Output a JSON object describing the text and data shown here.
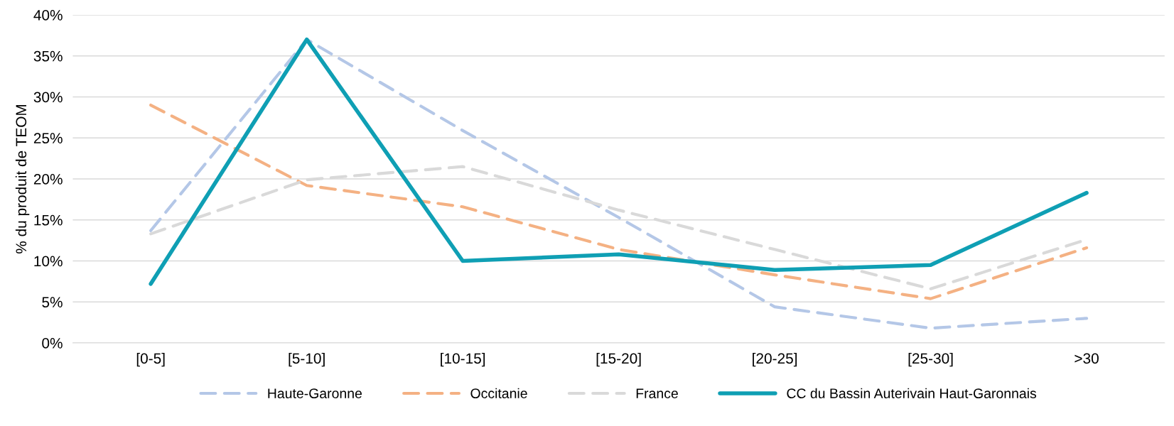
{
  "chart_data": {
    "type": "line",
    "ylabel": "% du produit de TEOM",
    "categories": [
      "[0-5]",
      "[5-10]",
      "[10-15]",
      "[15-20]",
      "[20-25]",
      "[25-30]",
      ">30"
    ],
    "series": [
      {
        "name": "Haute-Garonne",
        "color": "#b4c7e7",
        "line_style": "dashed",
        "values": [
          13.7,
          37.0,
          25.9,
          15.3,
          4.4,
          1.8,
          3.0
        ]
      },
      {
        "name": "Occitanie",
        "color": "#f4b183",
        "line_style": "dashed",
        "values": [
          29.0,
          19.2,
          16.6,
          11.4,
          8.3,
          5.4,
          11.6
        ]
      },
      {
        "name": "France",
        "color": "#d9d9d9",
        "line_style": "dashed",
        "values": [
          13.3,
          19.9,
          21.5,
          16.2,
          11.4,
          6.6,
          12.6
        ]
      },
      {
        "name": "CC du Bassin Auterivain Haut-Garonnais",
        "color": "#0f9fb4",
        "line_style": "solid",
        "values": [
          7.2,
          37.0,
          10.0,
          10.8,
          8.9,
          9.5,
          18.3
        ]
      }
    ],
    "ylim": [
      0,
      40
    ],
    "yticks": [
      {
        "value": 0,
        "label": "0%"
      },
      {
        "value": 5,
        "label": "5%"
      },
      {
        "value": 10,
        "label": "10%"
      },
      {
        "value": 15,
        "label": "15%"
      },
      {
        "value": 20,
        "label": "20%"
      },
      {
        "value": 25,
        "label": "25%"
      },
      {
        "value": 30,
        "label": "30%"
      },
      {
        "value": 35,
        "label": "35%"
      },
      {
        "value": 40,
        "label": "40%"
      }
    ],
    "grid": "y",
    "legend": "bottom",
    "marker": "none"
  }
}
